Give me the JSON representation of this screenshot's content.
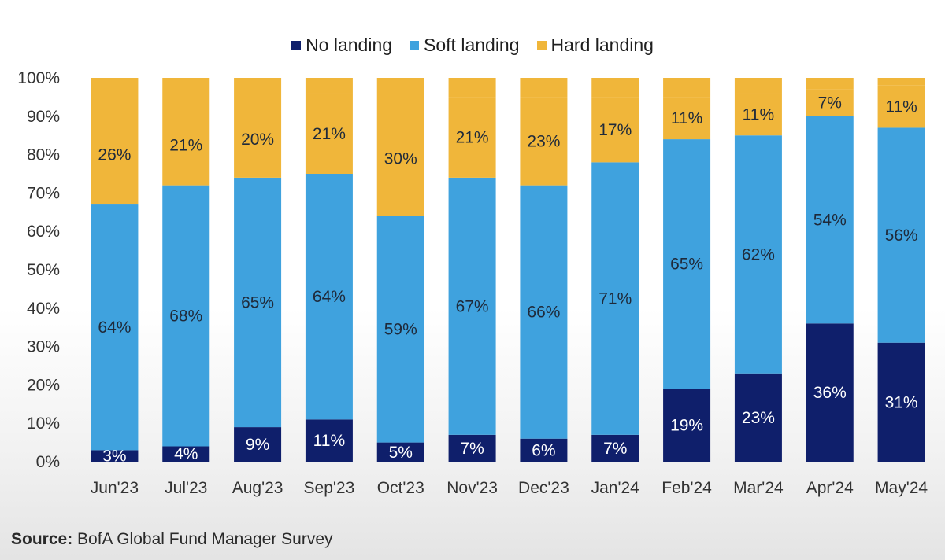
{
  "chart_data": {
    "type": "bar",
    "stacked": true,
    "categories": [
      "Jun'23",
      "Jul'23",
      "Aug'23",
      "Sep'23",
      "Oct'23",
      "Nov'23",
      "Dec'23",
      "Jan'24",
      "Feb'24",
      "Mar'24",
      "Apr'24",
      "May'24"
    ],
    "series": [
      {
        "name": "No landing",
        "color": "#0f1f6b",
        "values": [
          3,
          4,
          9,
          11,
          5,
          7,
          6,
          7,
          19,
          23,
          36,
          31
        ],
        "labels": [
          "3%",
          "4%",
          "9%",
          "11%",
          "5%",
          "7%",
          "6%",
          "7%",
          "19%",
          "23%",
          "36%",
          "31%"
        ],
        "label_color": "#ffffff"
      },
      {
        "name": "Soft landing",
        "color": "#3fa2de",
        "values": [
          64,
          68,
          65,
          64,
          59,
          67,
          66,
          71,
          65,
          62,
          54,
          56
        ],
        "labels": [
          "64%",
          "68%",
          "65%",
          "64%",
          "59%",
          "67%",
          "66%",
          "71%",
          "65%",
          "62%",
          "54%",
          "56%"
        ],
        "label_color": "#1f2a3a"
      },
      {
        "name": "Hard landing",
        "color": "#f0b63a",
        "values": [
          26,
          21,
          20,
          21,
          30,
          21,
          23,
          17,
          11,
          11,
          7,
          11
        ],
        "labels": [
          "26%",
          "21%",
          "20%",
          "21%",
          "30%",
          "21%",
          "23%",
          "17%",
          "11%",
          "11%",
          "7%",
          "11%"
        ],
        "label_color": "#1f2a3a"
      }
    ],
    "y_ticks": [
      "0%",
      "10%",
      "20%",
      "30%",
      "40%",
      "50%",
      "60%",
      "70%",
      "80%",
      "90%",
      "100%"
    ],
    "ylim": [
      0,
      100
    ],
    "legend_position": "top-center",
    "grid": false
  },
  "legend": {
    "items": [
      {
        "label": "No landing",
        "color": "#0f1f6b"
      },
      {
        "label": "Soft landing",
        "color": "#3fa2de"
      },
      {
        "label": "Hard landing",
        "color": "#f0b63a"
      }
    ]
  },
  "footer": {
    "source_label": "Source:",
    "source_text": " BofA Global Fund Manager Survey"
  }
}
